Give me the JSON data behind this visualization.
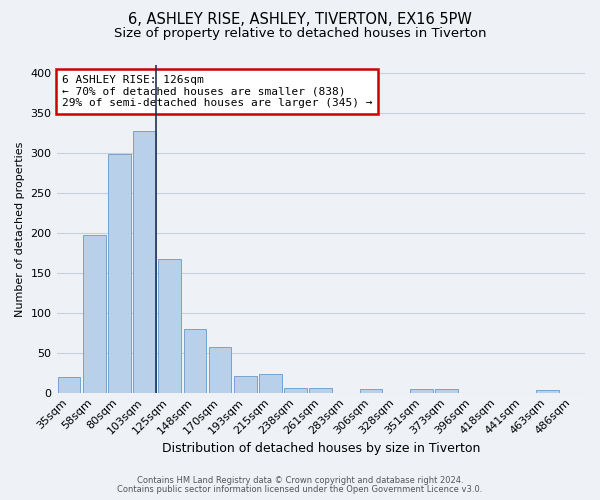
{
  "title": "6, ASHLEY RISE, ASHLEY, TIVERTON, EX16 5PW",
  "subtitle": "Size of property relative to detached houses in Tiverton",
  "xlabel": "Distribution of detached houses by size in Tiverton",
  "ylabel": "Number of detached properties",
  "bar_labels": [
    "35sqm",
    "58sqm",
    "80sqm",
    "103sqm",
    "125sqm",
    "148sqm",
    "170sqm",
    "193sqm",
    "215sqm",
    "238sqm",
    "261sqm",
    "283sqm",
    "306sqm",
    "328sqm",
    "351sqm",
    "373sqm",
    "396sqm",
    "418sqm",
    "441sqm",
    "463sqm",
    "486sqm"
  ],
  "bar_heights": [
    20,
    197,
    299,
    327,
    167,
    80,
    57,
    21,
    24,
    6,
    6,
    0,
    4,
    0,
    4,
    4,
    0,
    0,
    0,
    3,
    0
  ],
  "bar_color": "#b8d0ea",
  "bar_edge_color": "#6699cc",
  "highlight_bar_index": 3,
  "highlight_line_color": "#223355",
  "ylim": [
    0,
    410
  ],
  "annotation_text": "6 ASHLEY RISE: 126sqm\n← 70% of detached houses are smaller (838)\n29% of semi-detached houses are larger (345) →",
  "annotation_box_color": "#ffffff",
  "annotation_box_edge_color": "#cc0000",
  "footer1": "Contains HM Land Registry data © Crown copyright and database right 2024.",
  "footer2": "Contains public sector information licensed under the Open Government Licence v3.0.",
  "bg_color": "#eef2f7",
  "grid_color": "#c5cfe0",
  "title_fontsize": 10.5,
  "subtitle_fontsize": 9.5
}
